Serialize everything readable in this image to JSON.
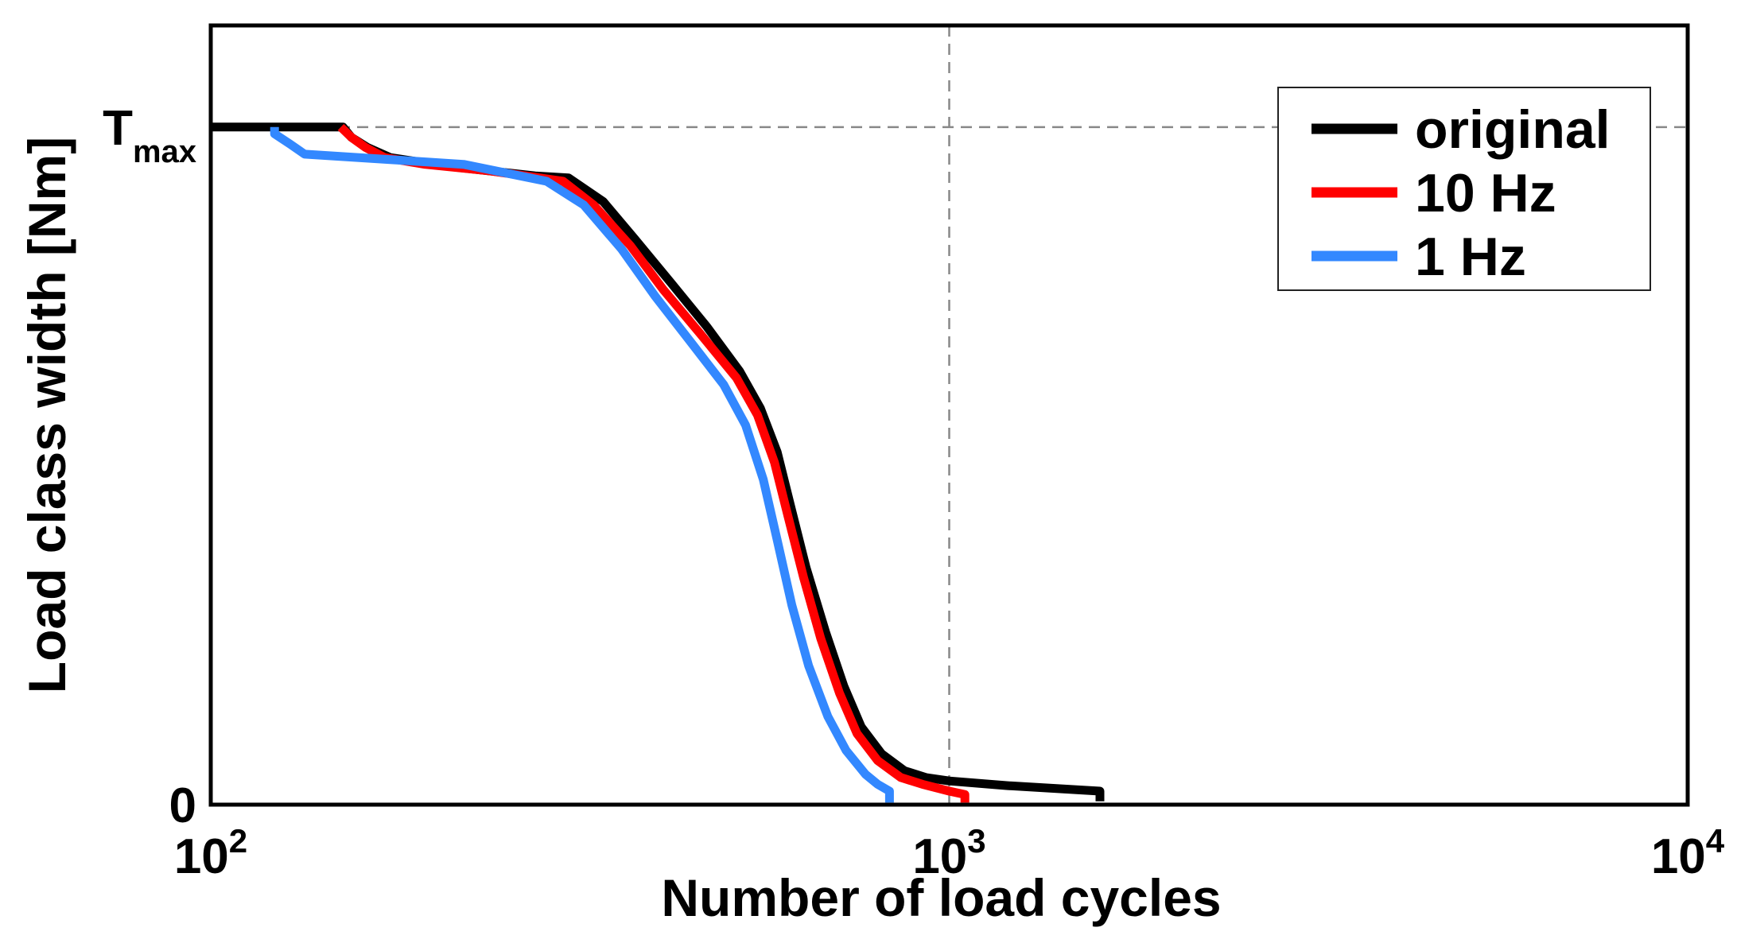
{
  "chart_data": {
    "type": "line",
    "title": "",
    "xlabel": "Number of load cycles",
    "ylabel": "Load class width  [Nm]",
    "x_scale": "log",
    "xlim": [
      100,
      10000
    ],
    "ylim": [
      0,
      1.15
    ],
    "x_ticks": [
      {
        "value": 100,
        "base": "10",
        "exp": "2"
      },
      {
        "value": 1000,
        "base": "10",
        "exp": "3"
      },
      {
        "value": 10000,
        "base": "10",
        "exp": "4"
      }
    ],
    "y_ticks": [
      {
        "value": 0,
        "label": "0",
        "sub": ""
      },
      {
        "value": 1.0,
        "label": "T",
        "sub": "max"
      }
    ],
    "reference_lines": {
      "x": 1000,
      "y": 1.0,
      "style": "dashed",
      "color": "#888888"
    },
    "legend": {
      "position": "top-right"
    },
    "series": [
      {
        "name": "original",
        "color": "#000000",
        "x": [
          100,
          151,
          155,
          163,
          175,
          210,
          275,
          305,
          340,
          375,
          420,
          470,
          520,
          555,
          585,
          610,
          640,
          680,
          720,
          760,
          810,
          870,
          930,
          1000,
          1200,
          1600,
          1600
        ],
        "y": [
          1.0,
          1.0,
          0.985,
          0.97,
          0.955,
          0.942,
          0.928,
          0.925,
          0.89,
          0.835,
          0.77,
          0.705,
          0.64,
          0.585,
          0.52,
          0.44,
          0.35,
          0.255,
          0.175,
          0.115,
          0.075,
          0.05,
          0.04,
          0.035,
          0.028,
          0.02,
          0.005
        ]
      },
      {
        "name": "10 Hz",
        "color": "#ff0000",
        "x": [
          150,
          155,
          162,
          172,
          195,
          240,
          300,
          330,
          370,
          410,
          460,
          515,
          550,
          580,
          605,
          635,
          670,
          710,
          750,
          800,
          860,
          920,
          1000,
          1050,
          1050
        ],
        "y": [
          1.0,
          0.985,
          0.97,
          0.955,
          0.945,
          0.935,
          0.92,
          0.885,
          0.825,
          0.76,
          0.695,
          0.63,
          0.575,
          0.505,
          0.425,
          0.335,
          0.245,
          0.165,
          0.105,
          0.065,
          0.04,
          0.03,
          0.02,
          0.015,
          0.003
        ]
      },
      {
        "name": "1 Hz",
        "color": "#3388ff",
        "x": [
          122,
          122,
          128,
          134,
          175,
          220,
          285,
          320,
          360,
          400,
          445,
          495,
          530,
          560,
          585,
          612,
          645,
          685,
          725,
          770,
          800,
          830,
          830
        ],
        "y": [
          1.0,
          0.99,
          0.975,
          0.96,
          0.952,
          0.945,
          0.92,
          0.885,
          0.82,
          0.75,
          0.685,
          0.62,
          0.56,
          0.48,
          0.39,
          0.295,
          0.205,
          0.13,
          0.08,
          0.045,
          0.03,
          0.02,
          0.003
        ]
      }
    ]
  }
}
